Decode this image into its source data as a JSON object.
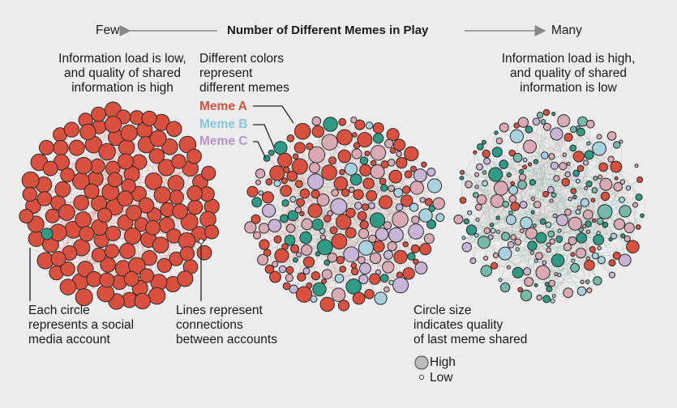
{
  "header": {
    "few_label": "Few",
    "title": "Number of Different Memes in Play",
    "many_label": "Many"
  },
  "annotations": {
    "left_top": [
      "Information load is low,",
      "and quality of shared",
      "information is high"
    ],
    "middle_top": [
      "Different colors",
      "represent",
      "different memes"
    ],
    "right_top": [
      "Information load is high,",
      "and quality of shared",
      "information is low"
    ],
    "circle_note": [
      "Each circle",
      "represents a social",
      "media account"
    ],
    "lines_note": [
      "Lines represent",
      "connections",
      "between accounts"
    ],
    "size_note": [
      "Circle size",
      "indicates quality",
      "of last meme shared"
    ]
  },
  "memes": [
    {
      "name": "Meme A",
      "color": "#d9503f"
    },
    {
      "name": "Meme B",
      "color": "#86c8dc"
    },
    {
      "name": "Meme C",
      "color": "#b894c6"
    }
  ],
  "size_legend": {
    "high": "High",
    "low": "Low"
  },
  "colors": {
    "background": "#ececec",
    "meme_a": "#d9503f",
    "meme_b_cyan": "#a9d2e1",
    "meme_c_purple": "#c8b4d6",
    "pink": "#d9a9b4",
    "teal": "#2e9b85",
    "teal_light": "#75b9a8",
    "outline": "#2b2b2b",
    "arrow": "#888888"
  }
}
